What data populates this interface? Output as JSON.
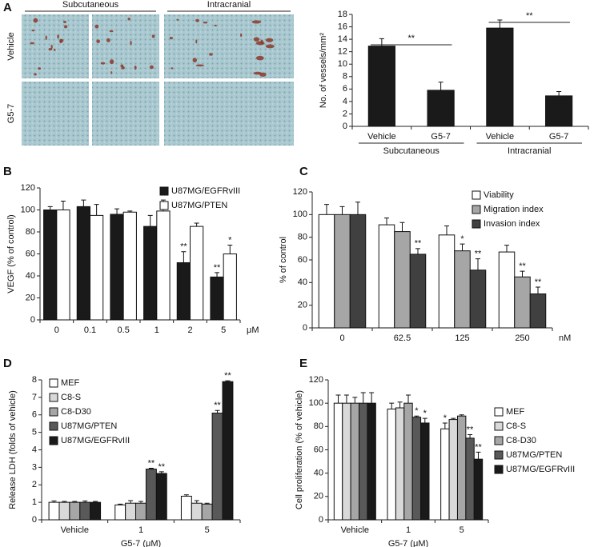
{
  "chart_data": [
    {
      "type": "bar",
      "panel": "A",
      "ylabel": "No. of vessels/mm²",
      "micrograph_columns": [
        "Subcutaneous",
        "Intracranial"
      ],
      "micrograph_rows": [
        "Vehicle",
        "G5-7"
      ],
      "categories": [
        "Vehicle",
        "G5-7",
        "Vehicle",
        "G5-7"
      ],
      "groups": [
        "Subcutaneous",
        "Intracranial"
      ],
      "bracket_labels": [
        "**",
        "**"
      ],
      "series": [
        {
          "color": "#1a1a1a",
          "values": [
            12.9,
            5.8,
            15.8,
            4.9
          ],
          "errors": [
            1.2,
            1.3,
            1.3,
            0.7
          ]
        }
      ],
      "ylim": [
        0,
        18
      ],
      "yticks": [
        0,
        2,
        4,
        6,
        8,
        10,
        12,
        14,
        16,
        18
      ]
    },
    {
      "type": "bar",
      "panel": "B",
      "ylabel": "VEGF (% of control)",
      "x_unit": "μM",
      "legend": "upper right",
      "categories": [
        "0",
        "0.1",
        "0.5",
        "1",
        "2",
        "5"
      ],
      "series": [
        {
          "name": "U87MG/EGFRvIII",
          "color": "#1a1a1a",
          "values": [
            100,
            103,
            96,
            85,
            52,
            39
          ],
          "errors": [
            3,
            6,
            5,
            10,
            10,
            4
          ],
          "annotations": [
            null,
            null,
            null,
            null,
            "**",
            "**"
          ]
        },
        {
          "name": "U87MG/PTEN",
          "color": "#ffffff",
          "values": [
            100,
            95,
            98,
            99,
            85,
            60
          ],
          "errors": [
            8,
            10,
            1,
            10,
            3,
            8
          ],
          "annotations": [
            null,
            null,
            null,
            null,
            null,
            "*"
          ]
        }
      ],
      "ylim": [
        0,
        120
      ],
      "yticks": [
        0,
        20,
        40,
        60,
        80,
        100,
        120
      ]
    },
    {
      "type": "bar",
      "panel": "C",
      "ylabel": "% of control",
      "x_unit": "nM",
      "legend": "upper right",
      "categories": [
        "0",
        "62.5",
        "125",
        "250"
      ],
      "series": [
        {
          "name": "Viability",
          "color": "#ffffff",
          "values": [
            100,
            91,
            82,
            67
          ],
          "errors": [
            9,
            6,
            8,
            6
          ],
          "annotations": [
            null,
            null,
            null,
            null
          ]
        },
        {
          "name": "Migration index",
          "color": "#a6a6a6",
          "values": [
            100,
            85,
            68,
            45
          ],
          "errors": [
            7,
            8,
            6,
            5
          ],
          "annotations": [
            null,
            null,
            "*",
            "**"
          ]
        },
        {
          "name": "Invasion index",
          "color": "#404040",
          "values": [
            100,
            65,
            51,
            30
          ],
          "errors": [
            11,
            5,
            10,
            6
          ],
          "annotations": [
            null,
            "**",
            "**",
            "**"
          ]
        }
      ],
      "ylim": [
        0,
        120
      ],
      "yticks": [
        0,
        20,
        40,
        60,
        80,
        100,
        120
      ]
    },
    {
      "type": "bar",
      "panel": "D",
      "ylabel": "Release LDH (folds of vehicle)",
      "xlabel": "G5-7 (μM)",
      "legend": "upper left",
      "categories": [
        "Vehicle",
        "1",
        "5"
      ],
      "series": [
        {
          "name": "MEF",
          "color": "#ffffff",
          "values": [
            1.0,
            0.85,
            1.35
          ],
          "errors": [
            0.08,
            0.05,
            0.08
          ],
          "annotations": [
            null,
            null,
            null
          ]
        },
        {
          "name": "C8-S",
          "color": "#d9d9d9",
          "values": [
            1.0,
            0.95,
            0.95
          ],
          "errors": [
            0.05,
            0.15,
            0.15
          ],
          "annotations": [
            null,
            null,
            null
          ]
        },
        {
          "name": "C8-D30",
          "color": "#a6a6a6",
          "values": [
            1.0,
            0.95,
            0.9
          ],
          "errors": [
            0.05,
            0.1,
            0.05
          ],
          "annotations": [
            null,
            null,
            null
          ]
        },
        {
          "name": "U87MG/PTEN",
          "color": "#595959",
          "values": [
            1.0,
            2.9,
            6.1
          ],
          "errors": [
            0.08,
            0.05,
            0.15
          ],
          "annotations": [
            null,
            "**",
            "**"
          ]
        },
        {
          "name": "U87MG/EGFRvIII",
          "color": "#1a1a1a",
          "values": [
            1.0,
            2.65,
            7.9
          ],
          "errors": [
            0.05,
            0.1,
            0.05
          ],
          "annotations": [
            null,
            "**",
            "**"
          ]
        }
      ],
      "ylim": [
        0,
        8
      ],
      "yticks": [
        0,
        1,
        2,
        3,
        4,
        5,
        6,
        7,
        8
      ]
    },
    {
      "type": "bar",
      "panel": "E",
      "ylabel": "Cell proliferation (% of vehicle)",
      "xlabel": "G5-7 (μM)",
      "legend": "right",
      "categories": [
        "Vehicle",
        "1",
        "5"
      ],
      "series": [
        {
          "name": "MEF",
          "color": "#ffffff",
          "values": [
            100,
            95,
            78
          ],
          "errors": [
            7,
            5,
            5
          ],
          "annotations": [
            null,
            null,
            "*"
          ]
        },
        {
          "name": "C8-S",
          "color": "#d9d9d9",
          "values": [
            100,
            96,
            86
          ],
          "errors": [
            7,
            5,
            1
          ],
          "annotations": [
            null,
            null,
            null
          ]
        },
        {
          "name": "C8-D30",
          "color": "#a6a6a6",
          "values": [
            100,
            100,
            89
          ],
          "errors": [
            5,
            7,
            1
          ],
          "annotations": [
            null,
            null,
            null
          ]
        },
        {
          "name": "U87MG/PTEN",
          "color": "#595959",
          "values": [
            100,
            88,
            70
          ],
          "errors": [
            9,
            1,
            3
          ],
          "annotations": [
            null,
            "*",
            "**"
          ]
        },
        {
          "name": "U87MG/EGFRvIII",
          "color": "#1a1a1a",
          "values": [
            100,
            83,
            52
          ],
          "errors": [
            9,
            4,
            6
          ],
          "annotations": [
            null,
            "*",
            "**"
          ]
        }
      ],
      "ylim": [
        0,
        120
      ],
      "yticks": [
        0,
        20,
        40,
        60,
        80,
        100,
        120
      ]
    }
  ]
}
